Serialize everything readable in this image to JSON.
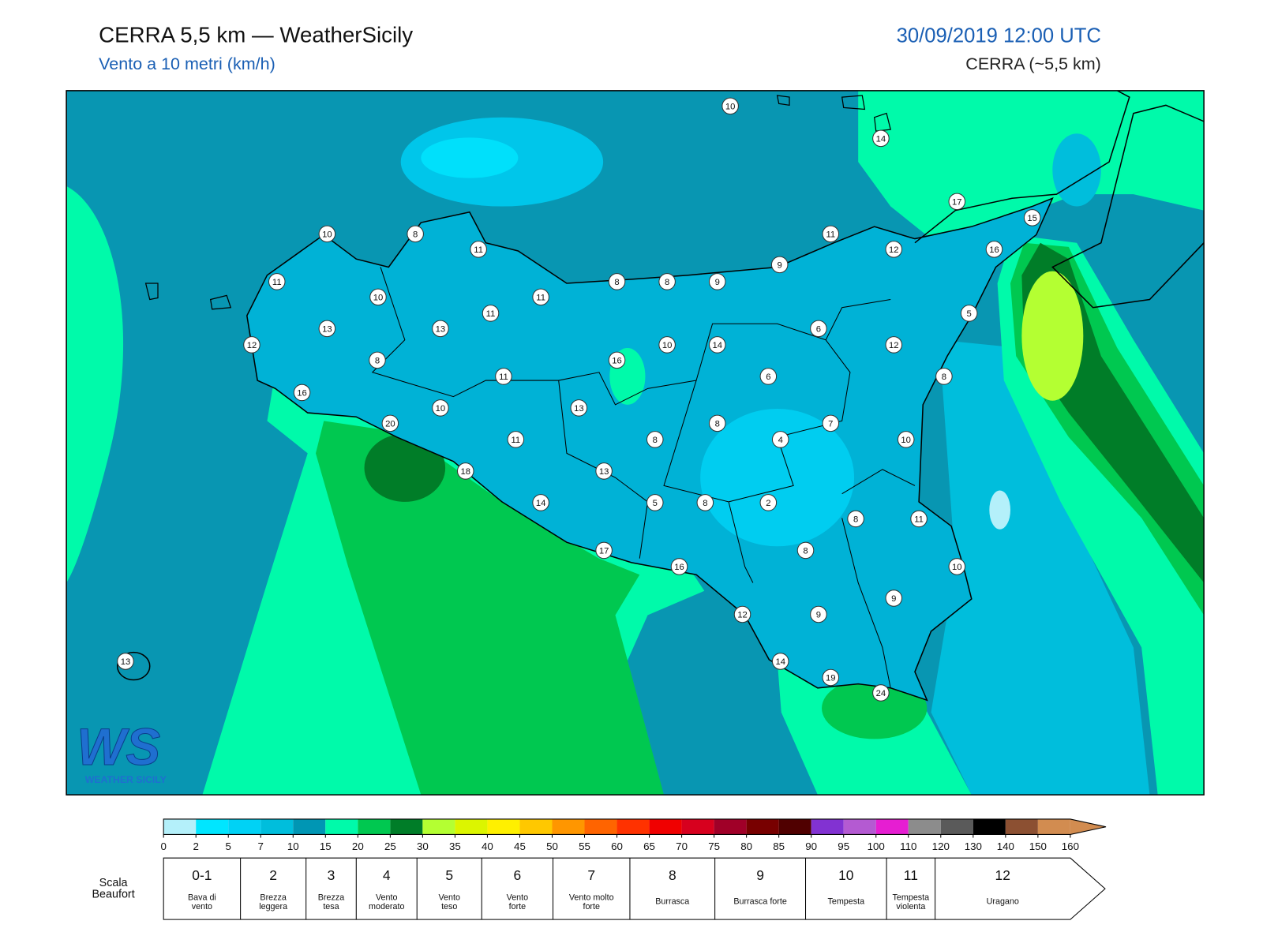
{
  "header": {
    "title": "CERRA 5,5 km — WeatherSicily",
    "subtitle": "Vento a 10 metri (km/h)",
    "datetime": "30/09/2019 12:00 UTC",
    "model": "CERRA (~5,5 km)"
  },
  "map": {
    "stations": [
      10,
      14,
      17,
      15,
      10,
      8,
      11,
      11,
      12,
      16,
      9,
      11,
      8,
      8,
      9,
      10,
      11,
      11,
      5,
      13,
      13,
      6,
      12,
      10,
      14,
      12,
      8,
      16,
      11,
      6,
      8,
      16,
      10,
      13,
      20,
      8,
      7,
      11,
      8,
      4,
      10,
      18,
      13,
      14,
      5,
      8,
      2,
      8,
      11,
      17,
      8,
      16,
      10,
      9,
      12,
      9,
      13,
      14,
      19,
      24
    ],
    "logo": {
      "mark": "WS",
      "text": "WEATHER SICILY"
    }
  },
  "colorbar": {
    "ticks": [
      0,
      2,
      5,
      7,
      10,
      15,
      20,
      25,
      30,
      35,
      40,
      45,
      50,
      55,
      60,
      65,
      70,
      75,
      80,
      85,
      90,
      95,
      100,
      110,
      120,
      130,
      140,
      150,
      160
    ],
    "colors": [
      "#b4f0fa",
      "#00e6ff",
      "#00d2f5",
      "#00bedc",
      "#0096b4",
      "#00faaa",
      "#00c850",
      "#007d28",
      "#b4ff32",
      "#dcf500",
      "#fff000",
      "#ffc800",
      "#ff9600",
      "#ff6400",
      "#ff3200",
      "#f00000",
      "#d7001e",
      "#a00028",
      "#780000",
      "#500000",
      "#8232d2",
      "#b45ad2",
      "#e61ed2",
      "#8c8c8c",
      "#5a5a5a",
      "#000000",
      "#8c5032",
      "#d28c50"
    ]
  },
  "beaufort": {
    "label": "Scala Beaufort",
    "levels": [
      {
        "force": "0-1",
        "description": "Bava di vento"
      },
      {
        "force": "2",
        "description": "Brezza leggera"
      },
      {
        "force": "3",
        "description": "Brezza tesa"
      },
      {
        "force": "4",
        "description": "Vento moderato"
      },
      {
        "force": "5",
        "description": "Vento teso"
      },
      {
        "force": "6",
        "description": "Vento forte"
      },
      {
        "force": "7",
        "description": "Vento molto forte"
      },
      {
        "force": "8",
        "description": "Burrasca"
      },
      {
        "force": "9",
        "description": "Burrasca forte"
      },
      {
        "force": "10",
        "description": "Tempesta"
      },
      {
        "force": "11",
        "description": "Tempesta violenta"
      },
      {
        "force": "12",
        "description": "Uragano"
      }
    ]
  }
}
